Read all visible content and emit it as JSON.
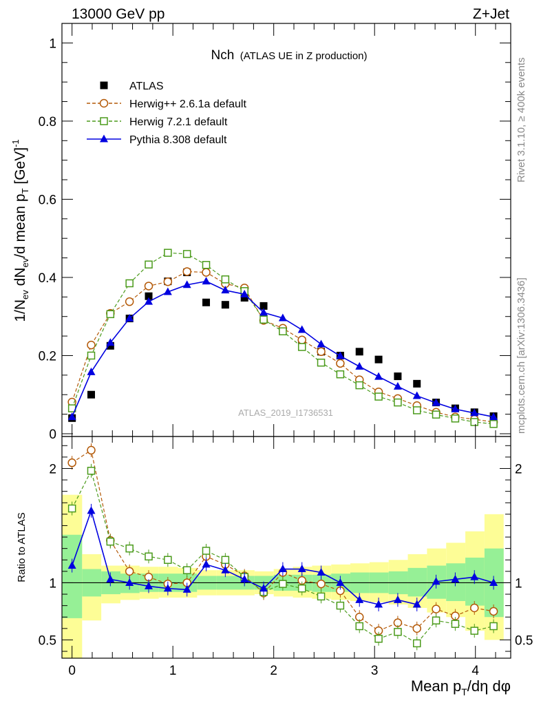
{
  "header": {
    "energy_label": "13000 GeV pp",
    "process_label": "Z+Jet"
  },
  "side_labels": {
    "rivet": "Rivet 3.1.10, ≥ 400k events",
    "mcplots": "mcplots.cern.ch [arXiv:1306.3436]"
  },
  "watermark": "ATLAS_2019_I1736531",
  "chart_data": [
    {
      "type": "scatter",
      "title_main": "Nch",
      "title_sub": "(ATLAS UE in Z production)",
      "ylabel": "1/N_ev dN_ev/d mean p_T [GeV]^-1",
      "ylabel_parts": [
        "1/N",
        "ev",
        " dN",
        "ev",
        "/d mean p",
        "T",
        " [GeV]",
        "-1"
      ],
      "xlim": [
        -0.1,
        4.35
      ],
      "ylim": [
        0,
        1.05
      ],
      "yticks": [
        0,
        0.2,
        0.4,
        0.6,
        0.8,
        1
      ],
      "ytick_labels": [
        "0",
        "0.2",
        "0.4",
        "0.6",
        "0.8",
        "1"
      ],
      "x": [
        0,
        0.19,
        0.38,
        0.57,
        0.76,
        0.95,
        1.14,
        1.33,
        1.52,
        1.71,
        1.9,
        2.09,
        2.28,
        2.47,
        2.66,
        2.85,
        3.04,
        3.23,
        3.42,
        3.61,
        3.8,
        3.99,
        4.18
      ],
      "legend": [
        "ATLAS",
        "Herwig++ 2.6.1a default",
        "Herwig 7.2.1 default",
        "Pythia 8.308 default"
      ],
      "series": [
        {
          "name": "ATLAS",
          "color": "#000000",
          "marker": "filled-square",
          "values": [
            0.04,
            0.1,
            0.225,
            0.295,
            0.352,
            0.39,
            0.413,
            0.336,
            0.33,
            0.348,
            0.327,
            0.262,
            0.237,
            0.21,
            0.2,
            0.21,
            0.19,
            0.147,
            0.128,
            0.08,
            0.065,
            0.055,
            0.045
          ]
        },
        {
          "name": "Herwig++ 2.6.1a default",
          "color": "#b35806",
          "marker": "open-circle",
          "values": [
            0.081,
            0.227,
            0.308,
            0.338,
            0.378,
            0.389,
            0.415,
            0.413,
            0.384,
            0.373,
            0.29,
            0.27,
            0.24,
            0.21,
            0.18,
            0.138,
            0.107,
            0.09,
            0.072,
            0.055,
            0.043,
            0.037,
            0.03
          ]
        },
        {
          "name": "Herwig 7.2.1 default",
          "color": "#4a9a1a",
          "marker": "open-square",
          "values": [
            0.065,
            0.2,
            0.306,
            0.385,
            0.433,
            0.463,
            0.46,
            0.432,
            0.395,
            0.365,
            0.292,
            0.262,
            0.222,
            0.182,
            0.152,
            0.124,
            0.095,
            0.08,
            0.06,
            0.049,
            0.039,
            0.03,
            0.025
          ]
        },
        {
          "name": "Pythia 8.308 default",
          "color": "#0000e0",
          "marker": "filled-triangle",
          "values": [
            0.043,
            0.158,
            0.233,
            0.295,
            0.338,
            0.363,
            0.381,
            0.39,
            0.367,
            0.357,
            0.31,
            0.296,
            0.266,
            0.229,
            0.199,
            0.172,
            0.146,
            0.121,
            0.097,
            0.079,
            0.063,
            0.053,
            0.043
          ]
        }
      ]
    },
    {
      "type": "line",
      "ylabel": "Ratio to ATLAS",
      "xlabel": "Mean p_T/dη dφ",
      "xlabel_parts": [
        "Mean p",
        "T",
        "/dη dφ"
      ],
      "xlim": [
        -0.1,
        4.35
      ],
      "ylim": [
        0.34,
        2.28
      ],
      "xticks": [
        0,
        1,
        2,
        3,
        4
      ],
      "xtick_labels": [
        "0",
        "1",
        "2",
        "3",
        "4"
      ],
      "yticks": [
        0.5,
        1,
        2
      ],
      "ytick_labels": [
        "0.5",
        "1",
        "2"
      ],
      "bin_edges": [
        -0.1,
        0.1,
        0.29,
        0.48,
        0.67,
        0.86,
        1.05,
        1.24,
        1.43,
        1.62,
        1.81,
        2.0,
        2.19,
        2.38,
        2.57,
        2.76,
        2.95,
        3.14,
        3.33,
        3.52,
        3.71,
        3.9,
        4.09,
        4.28
      ],
      "band_green_lo": [
        0.69,
        0.88,
        0.9,
        0.91,
        0.92,
        0.92,
        0.92,
        0.94,
        0.94,
        0.94,
        0.94,
        0.93,
        0.93,
        0.92,
        0.92,
        0.91,
        0.91,
        0.9,
        0.88,
        0.86,
        0.84,
        0.8,
        0.7
      ],
      "band_green_hi": [
        1.42,
        1.12,
        1.1,
        1.08,
        1.08,
        1.08,
        1.08,
        1.06,
        1.06,
        1.06,
        1.06,
        1.07,
        1.07,
        1.07,
        1.08,
        1.09,
        1.09,
        1.1,
        1.13,
        1.15,
        1.17,
        1.22,
        1.3
      ],
      "band_yellow_lo": [
        0.27,
        0.67,
        0.82,
        0.85,
        0.86,
        0.87,
        0.87,
        0.89,
        0.89,
        0.89,
        0.9,
        0.88,
        0.87,
        0.86,
        0.85,
        0.84,
        0.83,
        0.81,
        0.78,
        0.74,
        0.7,
        0.58,
        0.5
      ],
      "band_yellow_hi": [
        1.77,
        1.25,
        1.15,
        1.15,
        1.14,
        1.14,
        1.13,
        1.11,
        1.11,
        1.11,
        1.1,
        1.12,
        1.14,
        1.15,
        1.16,
        1.17,
        1.18,
        1.2,
        1.25,
        1.3,
        1.35,
        1.45,
        1.6
      ],
      "series": [
        {
          "name": "Herwig++ 2.6.1a default",
          "color": "#b35806",
          "values": [
            2.05,
            2.16,
            1.37,
            1.1,
            1.05,
            0.99,
            1.0,
            1.23,
            1.16,
            1.06,
            0.91,
            1.09,
            1.02,
            0.99,
            0.93,
            0.7,
            0.58,
            0.65,
            0.6,
            0.77,
            0.71,
            0.78,
            0.75
          ]
        },
        {
          "name": "Herwig 7.2.1 default",
          "color": "#4a9a1a",
          "values": [
            1.65,
            1.98,
            1.36,
            1.3,
            1.23,
            1.2,
            1.11,
            1.28,
            1.2,
            1.05,
            0.92,
            0.99,
            0.95,
            0.88,
            0.8,
            0.62,
            0.51,
            0.57,
            0.47,
            0.67,
            0.64,
            0.58,
            0.62
          ]
        },
        {
          "name": "Pythia 8.308 default",
          "color": "#0000e0",
          "values": [
            1.15,
            1.63,
            1.03,
            1.0,
            0.97,
            0.95,
            0.94,
            1.16,
            1.11,
            1.03,
            0.95,
            1.12,
            1.12,
            1.09,
            1.0,
            0.85,
            0.81,
            0.85,
            0.81,
            1.01,
            1.03,
            1.05,
            1.0
          ]
        }
      ]
    }
  ]
}
